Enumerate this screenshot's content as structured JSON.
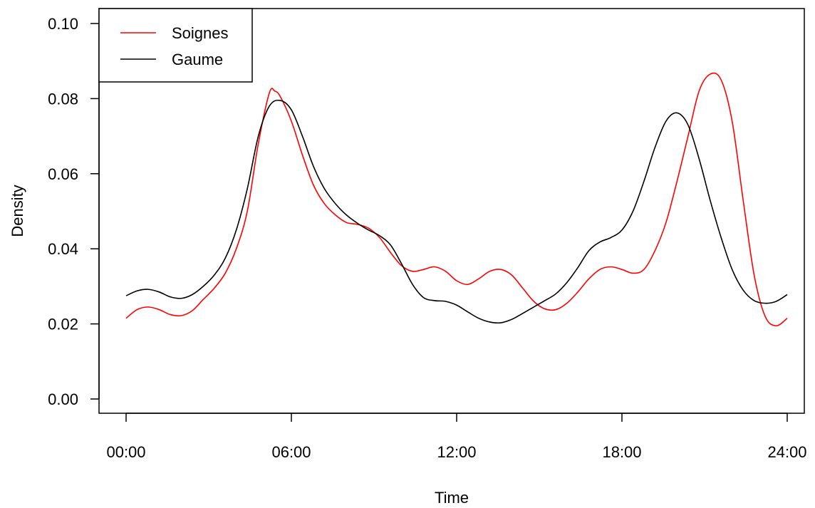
{
  "chart_data": {
    "type": "line",
    "xlabel": "Time",
    "ylabel": "Density",
    "xlim": [
      0,
      24
    ],
    "ylim": [
      0,
      0.1
    ],
    "x_ticks": [
      {
        "value": 0,
        "label": "00:00"
      },
      {
        "value": 6,
        "label": "06:00"
      },
      {
        "value": 12,
        "label": "12:00"
      },
      {
        "value": 18,
        "label": "18:00"
      },
      {
        "value": 24,
        "label": "24:00"
      }
    ],
    "y_ticks": [
      {
        "value": 0.0,
        "label": "0.00"
      },
      {
        "value": 0.02,
        "label": "0.02"
      },
      {
        "value": 0.04,
        "label": "0.04"
      },
      {
        "value": 0.06,
        "label": "0.06"
      },
      {
        "value": 0.08,
        "label": "0.08"
      },
      {
        "value": 0.1,
        "label": "0.10"
      }
    ],
    "grid": false,
    "legend_position": "top-left",
    "series": [
      {
        "name": "Soignes",
        "color": "#ff0000",
        "points": [
          [
            0,
            0.0215
          ],
          [
            0.4,
            0.0238
          ],
          [
            0.8,
            0.0245
          ],
          [
            1.2,
            0.0238
          ],
          [
            1.6,
            0.0225
          ],
          [
            2.0,
            0.0222
          ],
          [
            2.4,
            0.0235
          ],
          [
            2.8,
            0.0265
          ],
          [
            3.2,
            0.0295
          ],
          [
            3.6,
            0.0335
          ],
          [
            4.0,
            0.04
          ],
          [
            4.4,
            0.05
          ],
          [
            4.8,
            0.068
          ],
          [
            5.2,
            0.0815
          ],
          [
            5.4,
            0.082
          ],
          [
            5.6,
            0.0805
          ],
          [
            6.0,
            0.074
          ],
          [
            6.4,
            0.065
          ],
          [
            6.8,
            0.057
          ],
          [
            7.2,
            0.052
          ],
          [
            7.6,
            0.049
          ],
          [
            8.0,
            0.047
          ],
          [
            8.4,
            0.0465
          ],
          [
            8.8,
            0.0455
          ],
          [
            9.2,
            0.043
          ],
          [
            9.6,
            0.039
          ],
          [
            10.0,
            0.0355
          ],
          [
            10.4,
            0.034
          ],
          [
            10.8,
            0.0345
          ],
          [
            11.2,
            0.0352
          ],
          [
            11.6,
            0.034
          ],
          [
            12.0,
            0.0315
          ],
          [
            12.4,
            0.0305
          ],
          [
            12.8,
            0.032
          ],
          [
            13.2,
            0.034
          ],
          [
            13.6,
            0.0345
          ],
          [
            14.0,
            0.033
          ],
          [
            14.4,
            0.0295
          ],
          [
            14.8,
            0.026
          ],
          [
            15.2,
            0.024
          ],
          [
            15.6,
            0.0238
          ],
          [
            16.0,
            0.0255
          ],
          [
            16.4,
            0.0285
          ],
          [
            16.8,
            0.032
          ],
          [
            17.2,
            0.0345
          ],
          [
            17.6,
            0.0352
          ],
          [
            18.0,
            0.0345
          ],
          [
            18.4,
            0.0335
          ],
          [
            18.8,
            0.0345
          ],
          [
            19.2,
            0.0395
          ],
          [
            19.6,
            0.047
          ],
          [
            20.0,
            0.058
          ],
          [
            20.4,
            0.07
          ],
          [
            20.8,
            0.082
          ],
          [
            21.2,
            0.0865
          ],
          [
            21.6,
            0.085
          ],
          [
            22.0,
            0.074
          ],
          [
            22.4,
            0.053
          ],
          [
            22.8,
            0.033
          ],
          [
            23.2,
            0.022
          ],
          [
            23.6,
            0.0195
          ],
          [
            24.0,
            0.0215
          ]
        ]
      },
      {
        "name": "Gaume",
        "color": "#000000",
        "points": [
          [
            0,
            0.0275
          ],
          [
            0.4,
            0.0288
          ],
          [
            0.8,
            0.0292
          ],
          [
            1.2,
            0.0285
          ],
          [
            1.6,
            0.0272
          ],
          [
            2.0,
            0.0268
          ],
          [
            2.4,
            0.0278
          ],
          [
            2.8,
            0.03
          ],
          [
            3.2,
            0.033
          ],
          [
            3.6,
            0.0375
          ],
          [
            4.0,
            0.045
          ],
          [
            4.4,
            0.056
          ],
          [
            4.8,
            0.07
          ],
          [
            5.2,
            0.078
          ],
          [
            5.6,
            0.0795
          ],
          [
            6.0,
            0.077
          ],
          [
            6.4,
            0.07
          ],
          [
            6.8,
            0.062
          ],
          [
            7.2,
            0.056
          ],
          [
            7.6,
            0.052
          ],
          [
            8.0,
            0.049
          ],
          [
            8.4,
            0.0468
          ],
          [
            8.8,
            0.045
          ],
          [
            9.2,
            0.0435
          ],
          [
            9.6,
            0.041
          ],
          [
            10.0,
            0.036
          ],
          [
            10.4,
            0.0305
          ],
          [
            10.8,
            0.027
          ],
          [
            11.2,
            0.0262
          ],
          [
            11.6,
            0.026
          ],
          [
            12.0,
            0.025
          ],
          [
            12.4,
            0.0232
          ],
          [
            12.8,
            0.0215
          ],
          [
            13.2,
            0.0205
          ],
          [
            13.6,
            0.0203
          ],
          [
            14.0,
            0.0212
          ],
          [
            14.4,
            0.0228
          ],
          [
            14.8,
            0.0245
          ],
          [
            15.2,
            0.0262
          ],
          [
            15.6,
            0.028
          ],
          [
            16.0,
            0.031
          ],
          [
            16.4,
            0.035
          ],
          [
            16.8,
            0.0395
          ],
          [
            17.2,
            0.0418
          ],
          [
            17.6,
            0.043
          ],
          [
            18.0,
            0.045
          ],
          [
            18.4,
            0.05
          ],
          [
            18.8,
            0.058
          ],
          [
            19.2,
            0.067
          ],
          [
            19.6,
            0.074
          ],
          [
            20.0,
            0.0762
          ],
          [
            20.4,
            0.073
          ],
          [
            20.8,
            0.064
          ],
          [
            21.2,
            0.053
          ],
          [
            21.6,
            0.043
          ],
          [
            22.0,
            0.0345
          ],
          [
            22.4,
            0.029
          ],
          [
            22.8,
            0.0262
          ],
          [
            23.2,
            0.0255
          ],
          [
            23.6,
            0.026
          ],
          [
            24.0,
            0.0278
          ]
        ]
      }
    ]
  }
}
